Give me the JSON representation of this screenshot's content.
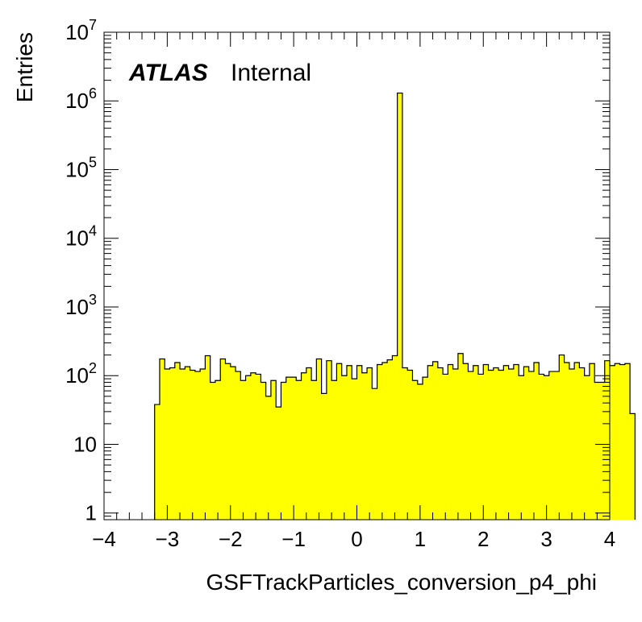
{
  "chart_data": {
    "type": "bar",
    "style": "histogram",
    "fill_color": "#ffff00",
    "line_color": "#000000",
    "xlabel": "GSFTrackParticles_conversion_p4_phi",
    "ylabel": "Entries",
    "xlim": [
      -4,
      4
    ],
    "ylim": [
      0.8,
      10000000
    ],
    "y_scale": "log",
    "x_ticks": [
      "−4",
      "−3",
      "−2",
      "−1",
      "0",
      "1",
      "2",
      "3",
      "4"
    ],
    "y_ticks": [
      {
        "label": "1",
        "value": 1
      },
      {
        "label": "10",
        "value": 10
      },
      {
        "label": "10",
        "sup": "2",
        "value": 100
      },
      {
        "label": "10",
        "sup": "3",
        "value": 1000
      },
      {
        "label": "10",
        "sup": "4",
        "value": 10000
      },
      {
        "label": "10",
        "sup": "5",
        "value": 100000
      },
      {
        "label": "10",
        "sup": "6",
        "value": 1000000
      },
      {
        "label": "10",
        "sup": "7",
        "value": 10000000
      }
    ],
    "annotation": {
      "bold": "ATLAS",
      "normal": "Internal"
    },
    "bin_start": -3.2,
    "bin_width": 0.08,
    "values": [
      38,
      175,
      125,
      130,
      155,
      125,
      135,
      120,
      115,
      125,
      195,
      80,
      85,
      175,
      150,
      135,
      115,
      85,
      100,
      110,
      105,
      80,
      50,
      85,
      35,
      80,
      95,
      95,
      85,
      110,
      130,
      85,
      175,
      55,
      165,
      85,
      150,
      100,
      140,
      90,
      140,
      110,
      130,
      65,
      145,
      155,
      170,
      195,
      1300000,
      130,
      120,
      85,
      75,
      95,
      140,
      160,
      130,
      105,
      145,
      125,
      210,
      150,
      115,
      140,
      105,
      145,
      120,
      130,
      120,
      140,
      125,
      145,
      100,
      135,
      115,
      155,
      105,
      100,
      115,
      115,
      200,
      155,
      125,
      155,
      130,
      100,
      150,
      80,
      80,
      165,
      140,
      150,
      145,
      150,
      28
    ]
  }
}
